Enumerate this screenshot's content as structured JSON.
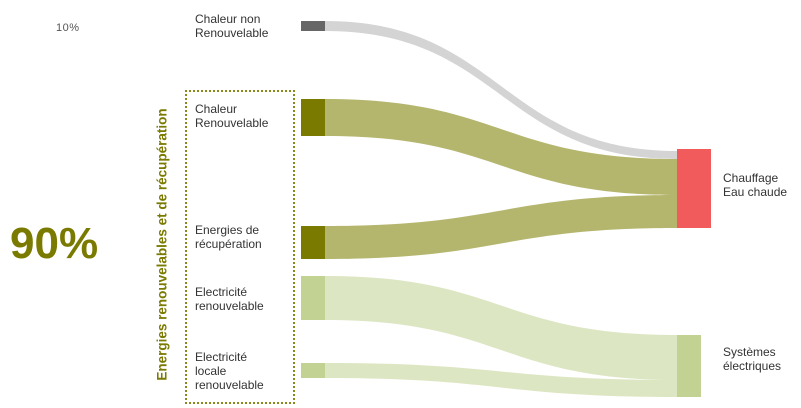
{
  "colors": {
    "accent": "#7a7a00",
    "non_renewable_node": "#666666",
    "non_renewable_flow": "#d4d4d4",
    "renewable_node": "#7a7a00",
    "renewable_flow": "#b5b66e",
    "electric_node": "#c1d293",
    "electric_flow": "#dde6c2",
    "chauffage_node": "#f25b5b",
    "systemes_node": "#c1d293"
  },
  "share_non_renewable": "10%",
  "share_renewable": "90%",
  "group_label": "Energies renouvelables et de récupération",
  "sources": [
    {
      "id": "chaleur-non-renouvelable",
      "label": "Chaleur non\nRenouvelable",
      "category": "non_renewable"
    },
    {
      "id": "chaleur-renouvelable",
      "label": "Chaleur\nRenouvelable",
      "category": "renewable"
    },
    {
      "id": "energies-de-recuperation",
      "label": "Energies de\nrécupération",
      "category": "renewable"
    },
    {
      "id": "electricite-renouvelable",
      "label": "Electricité\nrenouvelable",
      "category": "electric"
    },
    {
      "id": "electricite-locale-renouvelable",
      "label": "Electricité\nlocale\nrenouvelable",
      "category": "electric"
    }
  ],
  "targets": [
    {
      "id": "chauffage-eau-chaude",
      "label": "Chauffage\nEau chaude",
      "category": "chauffage"
    },
    {
      "id": "systemes-electriques",
      "label": "Systèmes\nélectriques",
      "category": "systemes"
    }
  ],
  "flows": [
    {
      "source": "chaleur-non-renouvelable",
      "target": "chauffage-eau-chaude",
      "category": "non_renewable"
    },
    {
      "source": "chaleur-renouvelable",
      "target": "chauffage-eau-chaude",
      "category": "renewable"
    },
    {
      "source": "energies-de-recuperation",
      "target": "chauffage-eau-chaude",
      "category": "renewable"
    },
    {
      "source": "electricite-renouvelable",
      "target": "systemes-electriques",
      "category": "electric"
    },
    {
      "source": "electricite-locale-renouvelable",
      "target": "systemes-electriques",
      "category": "electric"
    }
  ]
}
